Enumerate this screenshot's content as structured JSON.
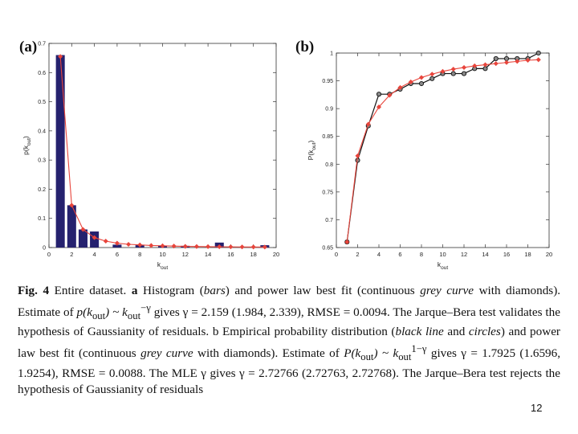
{
  "panel_labels": {
    "a": "(a)",
    "b": "(b)"
  },
  "chart_data": [
    {
      "type": "bar",
      "panel": "(a)",
      "title": "",
      "xlabel": "k_out",
      "ylabel": "p(k_out)",
      "xlim": [
        0,
        20
      ],
      "ylim": [
        0,
        0.7
      ],
      "x_ticks": [
        0,
        2,
        4,
        6,
        8,
        10,
        12,
        14,
        16,
        18,
        20
      ],
      "y_ticks": [
        0,
        0.1,
        0.2,
        0.3,
        0.4,
        0.5,
        0.6,
        0.7
      ],
      "x_tick_labels": [
        "0",
        "2",
        "4",
        "6",
        "8",
        "10",
        "12",
        "14",
        "16",
        "18",
        "20"
      ],
      "y_tick_labels": [
        "0",
        "0.1",
        "0.2",
        "0.3",
        "0.4",
        "0.5",
        "0.6",
        "0.7"
      ],
      "colors": {
        "bars": "#25216e",
        "fit": "#e8453c"
      },
      "series": [
        {
          "name": "Histogram",
          "kind": "bar",
          "x": [
            1,
            2,
            3,
            4,
            6,
            8,
            10,
            12,
            15,
            19
          ],
          "values": [
            0.66,
            0.145,
            0.062,
            0.055,
            0.01,
            0.008,
            0.006,
            0.006,
            0.017,
            0.008
          ]
        },
        {
          "name": "Power law best fit",
          "kind": "line",
          "marker": "diamond",
          "x": [
            1,
            2,
            3,
            4,
            5,
            6,
            7,
            8,
            9,
            10,
            11,
            12,
            13,
            14,
            15,
            16,
            17,
            18,
            19
          ],
          "values": [
            0.655,
            0.145,
            0.062,
            0.034,
            0.022,
            0.015,
            0.011,
            0.009,
            0.007,
            0.006,
            0.005,
            0.004,
            0.0035,
            0.003,
            0.0027,
            0.0024,
            0.0021,
            0.0019,
            0.0017
          ]
        }
      ]
    },
    {
      "type": "line",
      "panel": "(b)",
      "title": "",
      "xlabel": "k_out",
      "ylabel": "P(k_out)",
      "xlim": [
        0,
        20
      ],
      "ylim": [
        0.65,
        1
      ],
      "x_ticks": [
        0,
        2,
        4,
        6,
        8,
        10,
        12,
        14,
        16,
        18,
        20
      ],
      "y_ticks": [
        0.65,
        0.7,
        0.75,
        0.8,
        0.85,
        0.9,
        0.95,
        1
      ],
      "x_tick_labels": [
        "0",
        "2",
        "4",
        "6",
        "8",
        "10",
        "12",
        "14",
        "16",
        "18",
        "20"
      ],
      "y_tick_labels": [
        "0.65",
        "0.7",
        "0.75",
        "0.8",
        "0.85",
        "0.9",
        "0.95",
        "1"
      ],
      "colors": {
        "empirical": "#111111",
        "fit": "#e8453c"
      },
      "series": [
        {
          "name": "Empirical probability distribution",
          "kind": "line",
          "marker": "circle",
          "x": [
            1,
            2,
            3,
            4,
            5,
            6,
            7,
            8,
            9,
            10,
            11,
            12,
            13,
            14,
            15,
            16,
            17,
            18,
            19
          ],
          "values": [
            0.66,
            0.807,
            0.869,
            0.926,
            0.926,
            0.935,
            0.945,
            0.945,
            0.954,
            0.963,
            0.963,
            0.963,
            0.972,
            0.972,
            0.99,
            0.99,
            0.99,
            0.99,
            1.0
          ]
        },
        {
          "name": "Power law best fit",
          "kind": "line",
          "marker": "diamond",
          "x": [
            1,
            2,
            3,
            4,
            5,
            6,
            7,
            8,
            9,
            10,
            11,
            12,
            13,
            14,
            15,
            16,
            17,
            18,
            19
          ],
          "values": [
            0.66,
            0.815,
            0.872,
            0.903,
            0.924,
            0.938,
            0.948,
            0.956,
            0.962,
            0.967,
            0.971,
            0.974,
            0.977,
            0.979,
            0.981,
            0.983,
            0.985,
            0.987,
            0.988
          ]
        }
      ]
    }
  ],
  "caption": {
    "fig_label": "Fig. 4",
    "p1": "Entire dataset.",
    "p2": "a",
    "p3": "Histogram (",
    "p4": "bars",
    "p5": ") and power law best fit (continuous",
    "p6": "grey curve",
    "p7": "with diamonds). Estimate of",
    "p8": "p(k",
    "p9": "out",
    "p10": ") ~ k",
    "p11": "out",
    "p12": "−γ",
    "p13": "gives γ = 2.159 (1.984, 2.339), RMSE = 0.0094. The Jarque–Bera test validates the hypothesis of Gaussianity of residuals. b Empirical probability distribution (",
    "p14": "black line",
    "p15": "and",
    "p16": "circles",
    "p17": ") and power law best fit (continuous",
    "p18": "grey curve",
    "p19": "with diamonds). Estimate of",
    "p20": "P(k",
    "p21": "out",
    "p22": ") ~ k",
    "p23": "out",
    "p24": "1−γ",
    "p25": "gives γ = 1.7925 (1.6596, 1.9254), RMSE = 0.0088. The MLE γ gives γ = 2.72766 (2.72763, 2.72768). The Jarque–Bera test rejects the hypothesis of Gaussianity of residuals"
  },
  "page_number": "12"
}
